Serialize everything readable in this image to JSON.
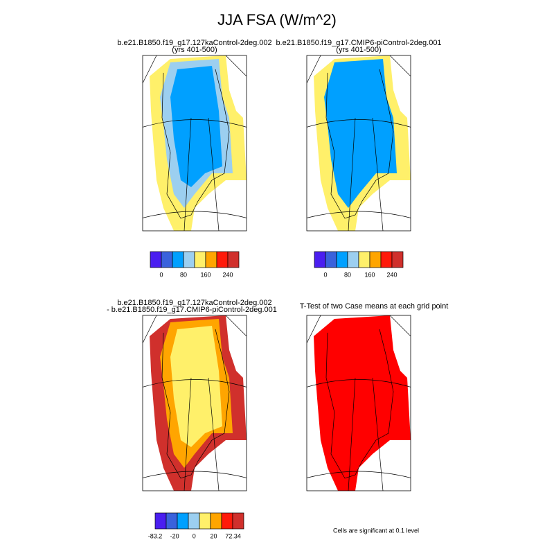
{
  "title": "JJA FSA (W/m^2)",
  "panels": [
    {
      "title": [
        "b.e21.B1850.f19_g17.127kaControl-2deg.002",
        "(yrs 401-500)"
      ]
    },
    {
      "title": [
        "b.e21.B1850.f19_g17.CMIP6-piControl-2deg.001",
        "(yrs 401-500)"
      ]
    },
    {
      "title": [
        "b.e21.B1850.f19_g17.127kaControl-2deg.002",
        "- b.e21.B1850.f19_g17.CMIP6-piControl-2deg.001"
      ]
    },
    {
      "title": [
        "T-Test of two Case means at each grid point"
      ]
    }
  ],
  "colorbars": [
    {
      "colors": [
        "#4a1ef0",
        "#3a62dc",
        "#00a0ff",
        "#9ccff0",
        "#fff06a",
        "#ffa500",
        "#ff1a0a",
        "#d0302c"
      ],
      "labels": [
        "0",
        "80",
        "160",
        "240"
      ]
    },
    {
      "colors": [
        "#4a1ef0",
        "#3a62dc",
        "#00a0ff",
        "#9ccff0",
        "#fff06a",
        "#ffa500",
        "#ff1a0a",
        "#d0302c"
      ],
      "labels": [
        "0",
        "80",
        "160",
        "240"
      ]
    },
    {
      "colors": [
        "#4a1ef0",
        "#3a62dc",
        "#00a0ff",
        "#9ccff0",
        "#fff06a",
        "#ffa500",
        "#ff1a0a",
        "#d0302c"
      ],
      "labels": [
        "-83.2",
        "-20",
        "0",
        "20",
        "72.34"
      ]
    }
  ],
  "note": "Cells are significant at 0.1 level"
}
